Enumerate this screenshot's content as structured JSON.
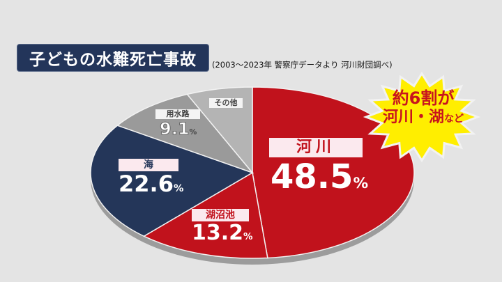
{
  "title": "子どもの水難死亡事故",
  "source": "(2003〜2023年 警察庁データより 河川財団調べ)",
  "callout": {
    "line1": "約6割が",
    "line2_main": "河川・湖",
    "line2_small": "など",
    "color": "#ffee00",
    "text_color": "#c8141e"
  },
  "slices": [
    {
      "label": "河川",
      "value": "48.5",
      "unit": "%",
      "color": "#c1121c"
    },
    {
      "label": "湖沼池",
      "value": "13.2",
      "unit": "%",
      "color": "#c1121c"
    },
    {
      "label": "海",
      "value": "22.6",
      "unit": "%",
      "color": "#243659"
    },
    {
      "label": "用水路",
      "value": "9.1",
      "unit": "%",
      "color": "#9a9a9a"
    },
    {
      "label": "その他",
      "value": "",
      "unit": "",
      "color": "#b4b4b4"
    }
  ],
  "chart_data": {
    "type": "pie",
    "title": "子どもの水難死亡事故",
    "subtitle": "(2003〜2023年 警察庁データより 河川財団調べ)",
    "categories": [
      "河川",
      "湖沼池",
      "海",
      "用水路",
      "その他"
    ],
    "values": [
      48.5,
      13.2,
      22.6,
      9.1,
      6.6
    ],
    "colors": [
      "#c1121c",
      "#c1121c",
      "#243659",
      "#9a9a9a",
      "#b4b4b4"
    ],
    "annotations": [
      "約6割が河川・湖など"
    ],
    "labeled_values": {
      "河川": 48.5,
      "湖沼池": 13.2,
      "海": 22.6,
      "用水路": 9.1,
      "その他": null
    }
  }
}
